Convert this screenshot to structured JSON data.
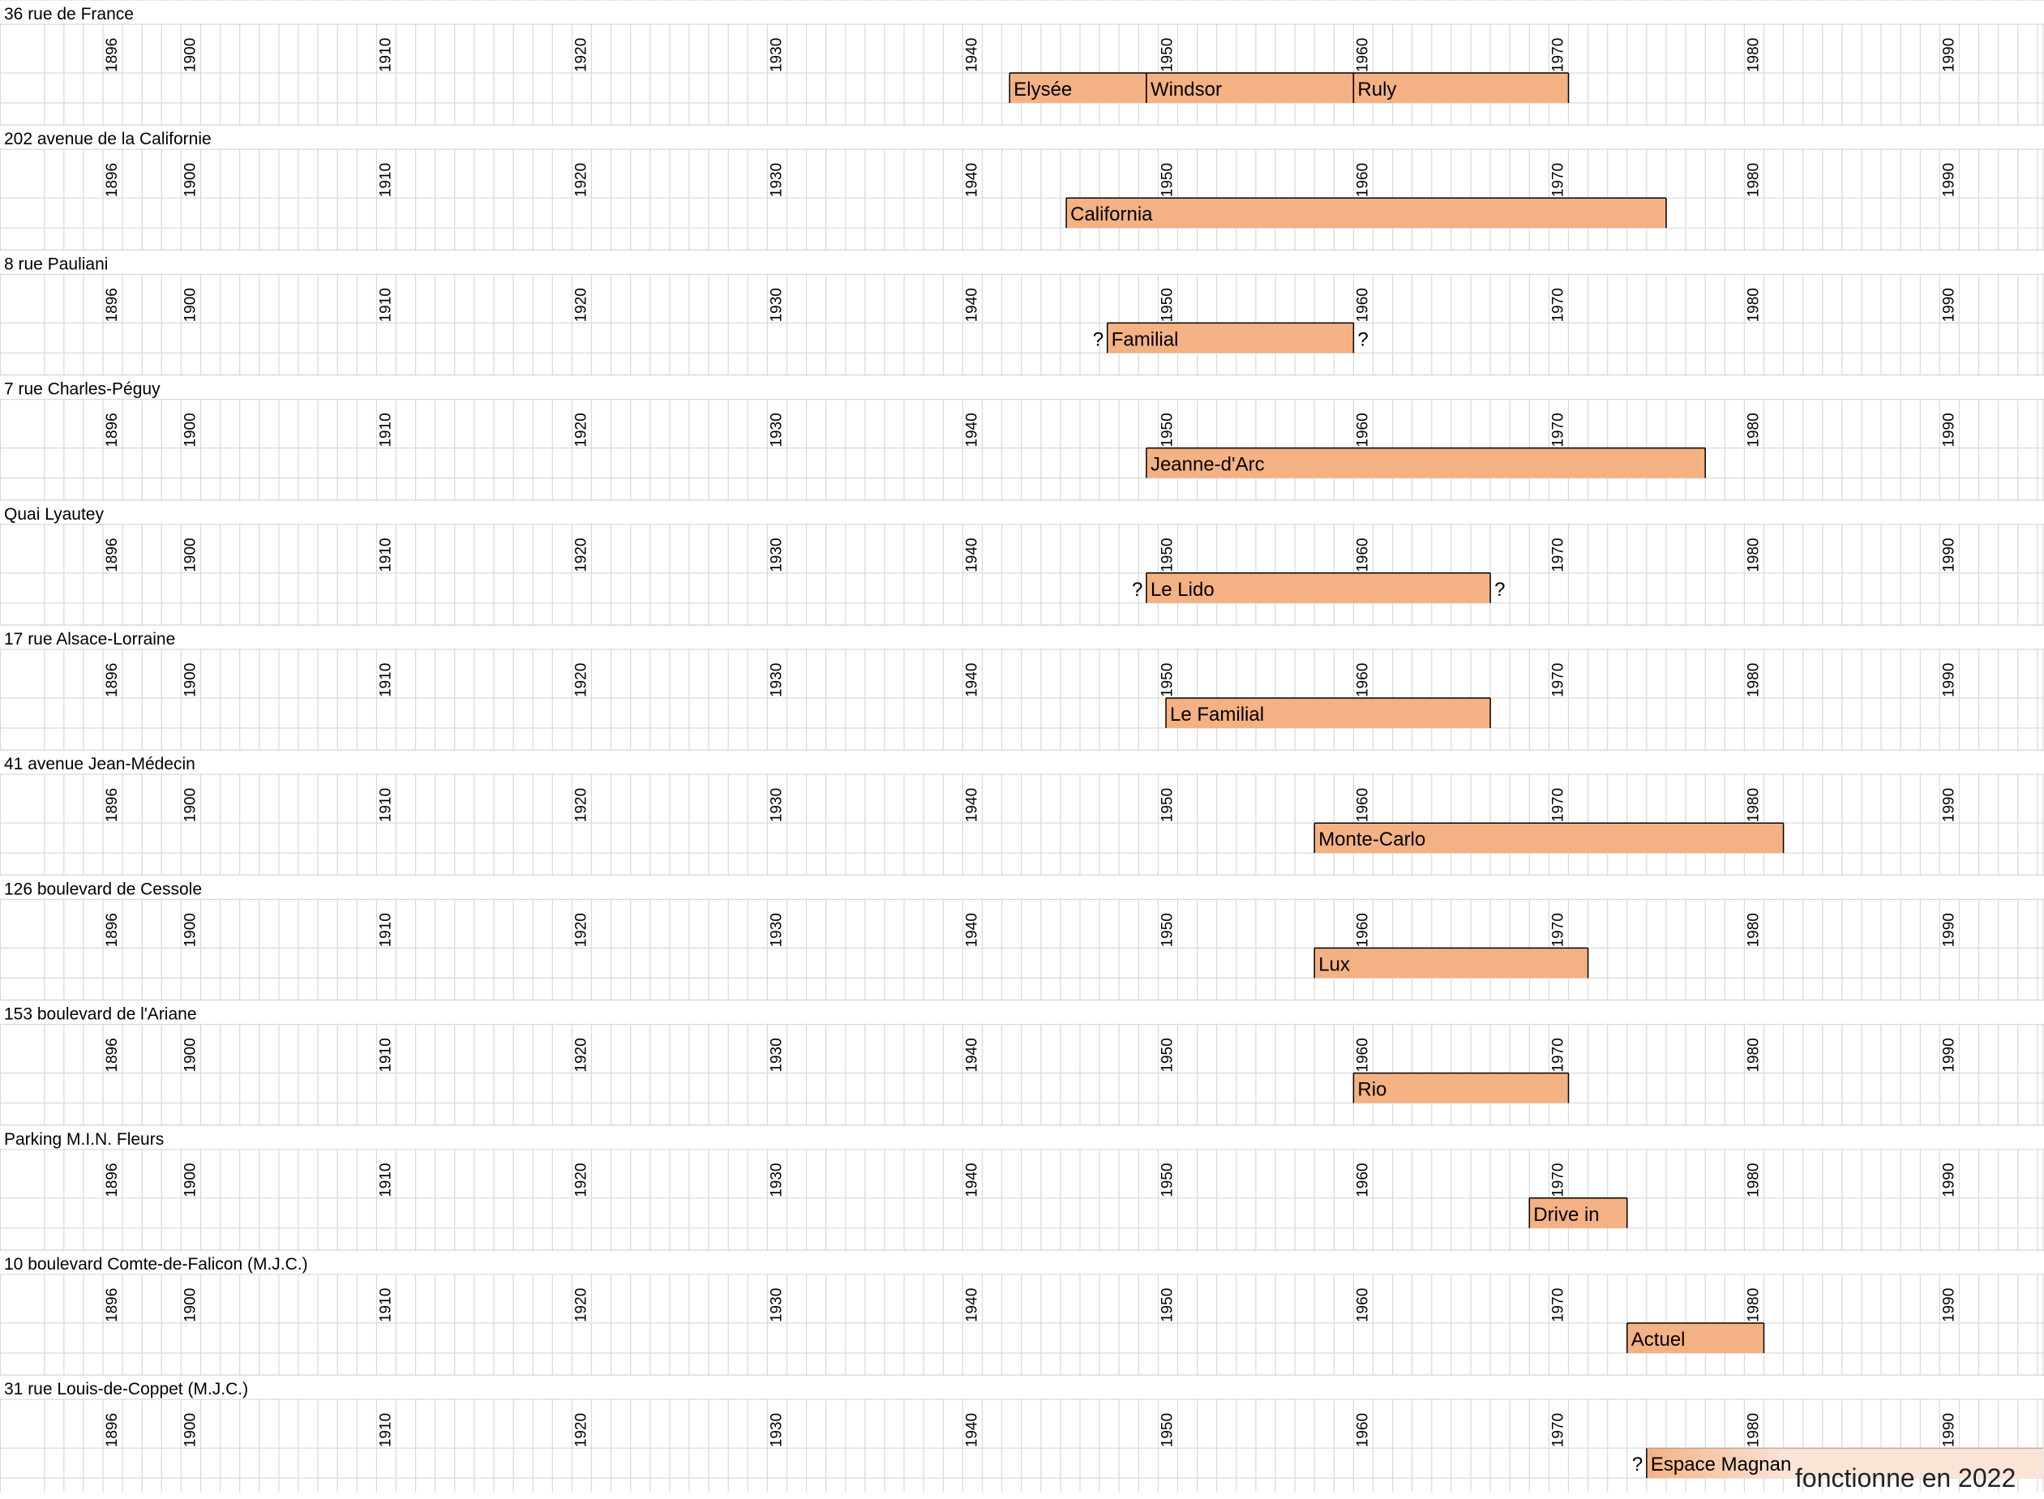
{
  "chart_data": {
    "type": "timeline",
    "x_range": [
      1891,
      2000
    ],
    "year_labels": [
      "1896",
      "1900",
      "1910",
      "1920",
      "1930",
      "1940",
      "1950",
      "1960",
      "1970",
      "1980",
      "1990"
    ],
    "colors": {
      "bar_fill": "#f4b183",
      "bar_fill_light": "#fbe3d6",
      "bar_stroke": "#000000",
      "grid": "#d9d9d9"
    },
    "rows": [
      {
        "address": "36 rue de France",
        "bars": [
          {
            "label": "Elysée",
            "start": 1942.4,
            "end": 1949.4
          },
          {
            "label": "Windsor",
            "start": 1949.4,
            "end": 1960.0
          },
          {
            "label": "Ruly",
            "start": 1960.0,
            "end": 1971.0
          }
        ]
      },
      {
        "address": "202 avenue de la Californie",
        "bars": [
          {
            "label": "California",
            "start": 1945.3,
            "end": 1976.0
          }
        ]
      },
      {
        "address": "8 rue Pauliani",
        "bars": [
          {
            "label": "Familial",
            "start": 1947.4,
            "end": 1960.0,
            "q_before": "?",
            "q_after": "?"
          }
        ]
      },
      {
        "address": "7 rue Charles-Péguy",
        "bars": [
          {
            "label": "Jeanne-d'Arc",
            "start": 1949.4,
            "end": 1978.0
          }
        ]
      },
      {
        "address": "Quai Lyautey",
        "bars": [
          {
            "label": "Le Lido",
            "start": 1949.4,
            "end": 1967.0,
            "q_before": "?",
            "q_after": "?"
          }
        ]
      },
      {
        "address": "17 rue Alsace-Lorraine",
        "bars": [
          {
            "label": "Le Familial",
            "start": 1950.4,
            "end": 1967.0
          }
        ]
      },
      {
        "address": "41 avenue Jean-Médecin",
        "bars": [
          {
            "label": "Monte-Carlo",
            "start": 1958.0,
            "end": 1982.0
          }
        ]
      },
      {
        "address": "126 boulevard de Cessole",
        "bars": [
          {
            "label": "Lux",
            "start": 1958.0,
            "end": 1972.0
          }
        ]
      },
      {
        "address": "153 boulevard de l'Ariane",
        "bars": [
          {
            "label": "Rio",
            "start": 1960.0,
            "end": 1971.0
          }
        ]
      },
      {
        "address": "Parking M.I.N. Fleurs",
        "bars": [
          {
            "label": "Drive in",
            "start": 1969.0,
            "end": 1974.0
          }
        ]
      },
      {
        "address": "10 boulevard Comte-de-Falicon (M.J.C.)",
        "bars": [
          {
            "label": "Actuel",
            "start": 1974.0,
            "end": 1981.0
          }
        ]
      },
      {
        "address": "31 rue Louis-de-Coppet (M.J.C.)",
        "bars": [
          {
            "label": "Espace Magnan",
            "start": 1975.0,
            "end": 2000.0,
            "q_before": "?",
            "open_ended": true
          }
        ]
      }
    ],
    "annotation": "fonctionne en 2022"
  }
}
